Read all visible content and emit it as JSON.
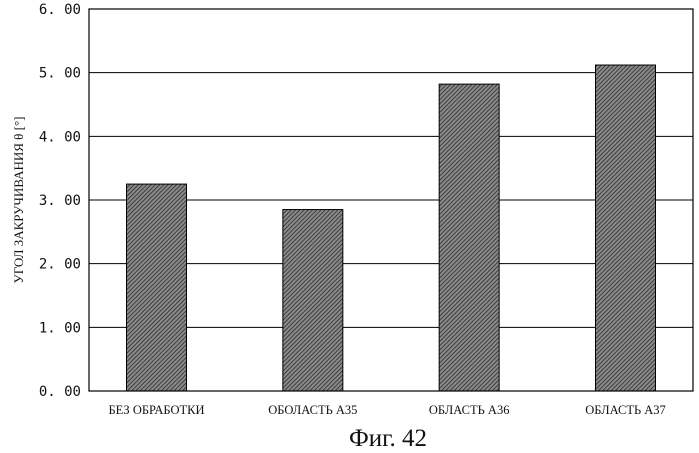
{
  "chart_data": {
    "type": "bar",
    "categories": [
      "БЕЗ ОБРАБОТКИ",
      "ОБОЛАСТЬ А35",
      "ОБЛАСТЬ А36",
      "ОБЛАСТЬ  А37"
    ],
    "values": [
      3.25,
      2.85,
      4.82,
      5.12
    ],
    "ylabel": "УГОЛ ЗАКРУЧИВАНИЯ θ [°]",
    "ylim": [
      0,
      6
    ],
    "yticks": [
      "0. 00",
      "1. 00",
      "2. 00",
      "3. 00",
      "4. 00",
      "5. 00",
      "6. 00"
    ],
    "grid": true,
    "bar_fill": "hatched",
    "bar_color": "#555555"
  },
  "caption": "Фиг. 42"
}
